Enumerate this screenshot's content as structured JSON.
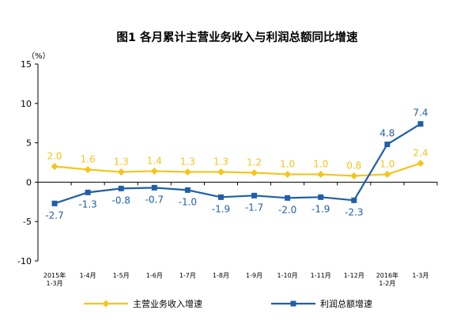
{
  "chart_data": {
    "type": "line",
    "title": "图1  各月累计主营业务收入与利润总额同比增速",
    "unit_label": "（%）",
    "xlabel": "",
    "ylabel": "",
    "ylim": [
      -10,
      15
    ],
    "yticks": [
      15,
      10,
      5,
      0,
      -5,
      -10
    ],
    "grid": false,
    "legend_position": "bottom",
    "categories": [
      [
        "2015年",
        "1-3月"
      ],
      [
        "1-4月"
      ],
      [
        "1-5月"
      ],
      [
        "1-6月"
      ],
      [
        "1-7月"
      ],
      [
        "1-8月"
      ],
      [
        "1-9月"
      ],
      [
        "1-10月"
      ],
      [
        "1-11月"
      ],
      [
        "1-12月"
      ],
      [
        "2016年",
        "1-2月"
      ],
      [
        "1-3月"
      ]
    ],
    "series": [
      {
        "name": "主营业务收入增速",
        "color": "#f5c518",
        "marker": "diamond",
        "values": [
          2.0,
          1.6,
          1.3,
          1.4,
          1.3,
          1.3,
          1.2,
          1.0,
          1.0,
          0.8,
          1.0,
          2.4
        ],
        "labels": [
          "2.0",
          "1.6",
          "1.3",
          "1.4",
          "1.3",
          "1.3",
          "1.2",
          "1.0",
          "1.0",
          "0.8",
          "1.0",
          "2.4"
        ]
      },
      {
        "name": "利润总额增速",
        "color": "#1f5fa8",
        "marker": "square",
        "values": [
          -2.7,
          -1.3,
          -0.8,
          -0.7,
          -1.0,
          -1.9,
          -1.7,
          -2.0,
          -1.9,
          -2.3,
          4.8,
          7.4
        ],
        "labels": [
          "-2.7",
          "-1.3",
          "-0.8",
          "-0.7",
          "-1.0",
          "-1.9",
          "-1.7",
          "-2.0",
          "-1.9",
          "-2.3",
          "4.8",
          "7.4"
        ]
      }
    ]
  }
}
